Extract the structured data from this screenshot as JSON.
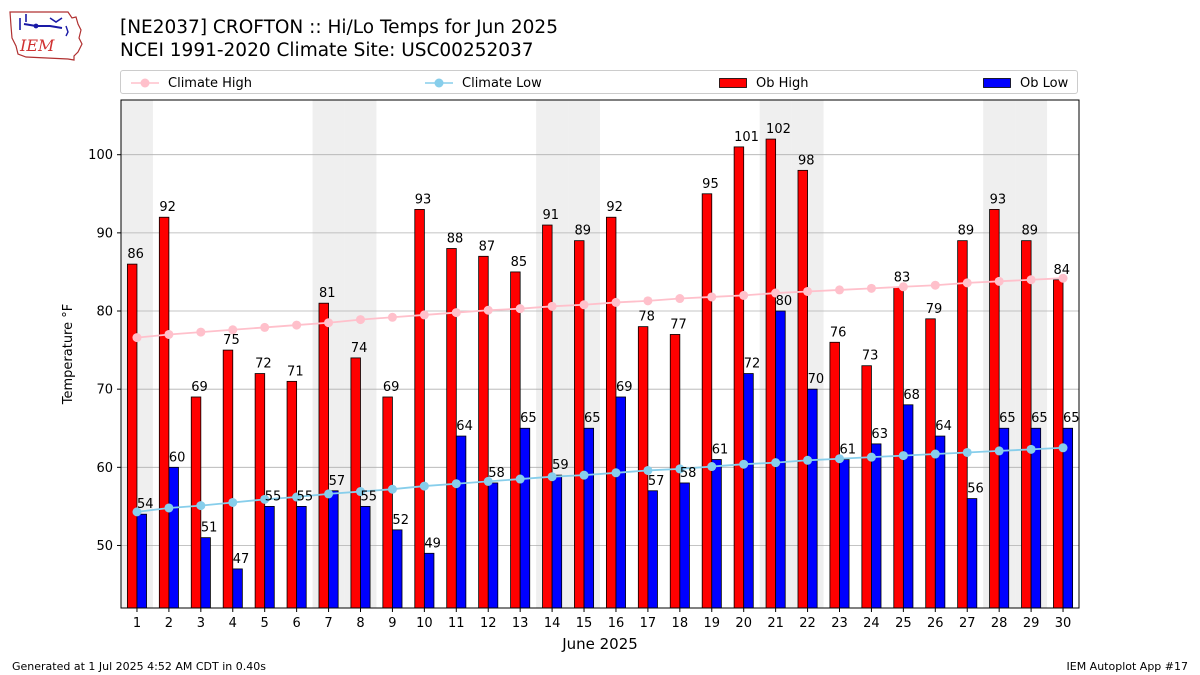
{
  "title": "[NE2037] CROFTON :: Hi/Lo Temps for Jun 2025",
  "subtitle": "NCEI 1991-2020 Climate Site: USC00252037",
  "logo_text": "IEM",
  "footer_left": "Generated at 1 Jul 2025 4:52 AM CDT in 0.40s",
  "footer_right": "IEM Autoplot App #17",
  "legend": [
    {
      "label": "Climate High",
      "kind": "line",
      "color": "#ffc0cb"
    },
    {
      "label": "Climate Low",
      "kind": "line",
      "color": "#87ceeb"
    },
    {
      "label": "Ob High",
      "kind": "bar",
      "color": "#ff0000"
    },
    {
      "label": "Ob Low",
      "kind": "bar",
      "color": "#0000ff"
    }
  ],
  "chart_data": {
    "type": "bar",
    "xlabel": "June 2025",
    "ylabel": "Temperature °F",
    "xlim": [
      0.5,
      30.5
    ],
    "ylim": [
      42,
      107
    ],
    "yticks": [
      50,
      60,
      70,
      80,
      90,
      100
    ],
    "grid": "horizontal",
    "legend_position": "top",
    "weekend_shading_days": [
      1,
      7,
      8,
      14,
      15,
      21,
      22,
      28,
      29
    ],
    "shade_color": "#efefef",
    "categories": [
      "1",
      "2",
      "3",
      "4",
      "5",
      "6",
      "7",
      "8",
      "9",
      "10",
      "11",
      "12",
      "13",
      "14",
      "15",
      "16",
      "17",
      "18",
      "19",
      "20",
      "21",
      "22",
      "23",
      "24",
      "25",
      "26",
      "27",
      "28",
      "29",
      "30"
    ],
    "series": [
      {
        "name": "Ob High",
        "type": "bar",
        "color": "#ff0000",
        "values": [
          86,
          92,
          69,
          75,
          72,
          71,
          81,
          74,
          69,
          93,
          88,
          87,
          85,
          91,
          89,
          92,
          78,
          77,
          95,
          101,
          102,
          98,
          76,
          73,
          83,
          79,
          89,
          93,
          89,
          84
        ]
      },
      {
        "name": "Ob Low",
        "type": "bar",
        "color": "#0000ff",
        "values": [
          54,
          60,
          51,
          47,
          55,
          55,
          57,
          55,
          52,
          49,
          64,
          58,
          65,
          59,
          65,
          69,
          57,
          58,
          61,
          72,
          80,
          70,
          61,
          63,
          68,
          64,
          56,
          65,
          65,
          65
        ]
      },
      {
        "name": "Climate High",
        "type": "line",
        "color": "#ffc0cb",
        "values": [
          76.6,
          77.0,
          77.3,
          77.6,
          77.9,
          78.2,
          78.5,
          78.9,
          79.2,
          79.5,
          79.8,
          80.1,
          80.3,
          80.6,
          80.8,
          81.1,
          81.3,
          81.6,
          81.8,
          82.0,
          82.3,
          82.5,
          82.7,
          82.9,
          83.1,
          83.3,
          83.6,
          83.8,
          84.0,
          84.2
        ]
      },
      {
        "name": "Climate Low",
        "type": "line",
        "color": "#87ceeb",
        "values": [
          54.3,
          54.8,
          55.1,
          55.5,
          55.9,
          56.2,
          56.6,
          56.9,
          57.2,
          57.6,
          57.9,
          58.2,
          58.5,
          58.8,
          59.0,
          59.3,
          59.6,
          59.8,
          60.1,
          60.4,
          60.6,
          60.9,
          61.1,
          61.3,
          61.5,
          61.7,
          61.9,
          62.1,
          62.3,
          62.5
        ]
      }
    ]
  }
}
